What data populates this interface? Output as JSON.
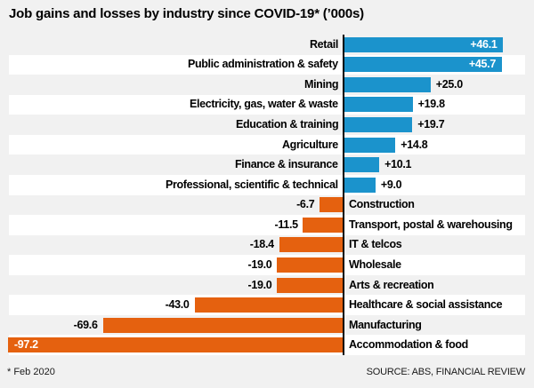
{
  "chart_data": {
    "type": "bar",
    "orientation": "horizontal",
    "title": "Job gains and losses by industry since COVID-19* (’000s)",
    "categories": [
      "Retail",
      "Public administration & safety",
      "Mining",
      "Electricity, gas, water & waste",
      "Education & training",
      "Agriculture",
      "Finance & insurance",
      "Professional, scientific & technical",
      "Construction",
      "Transport, postal & warehousing",
      "IT & telcos",
      "Wholesale",
      "Arts & recreation",
      "Healthcare & social assistance",
      "Manufacturing",
      "Accommodation & food"
    ],
    "values": [
      46.1,
      45.7,
      25.0,
      19.8,
      19.7,
      14.8,
      10.1,
      9.0,
      -6.7,
      -11.5,
      -18.4,
      -19.0,
      -19.0,
      -43.0,
      -69.6,
      -97.2
    ],
    "value_labels": [
      "+46.1",
      "+45.7",
      "+25.0",
      "+19.8",
      "+19.7",
      "+14.8",
      "+10.1",
      "+9.0",
      "-6.7",
      "-11.5",
      "-18.4",
      "-19.0",
      "-19.0",
      "-43.0",
      "-69.6",
      "-97.2"
    ],
    "xlim": [
      -100,
      50
    ],
    "baseline": 0,
    "grid": false,
    "legend": false,
    "colors": {
      "positive_bar": "#1b93cc",
      "negative_bar": "#e5610f",
      "background": "#f1f1f1",
      "row_stripe": "#ffffff",
      "axis_line": "#000000",
      "label_inside": "#ffffff",
      "label_outside": "#000000"
    },
    "footnote": "* Feb 2020",
    "source": "SOURCE: ABS, FINANCIAL REVIEW"
  }
}
